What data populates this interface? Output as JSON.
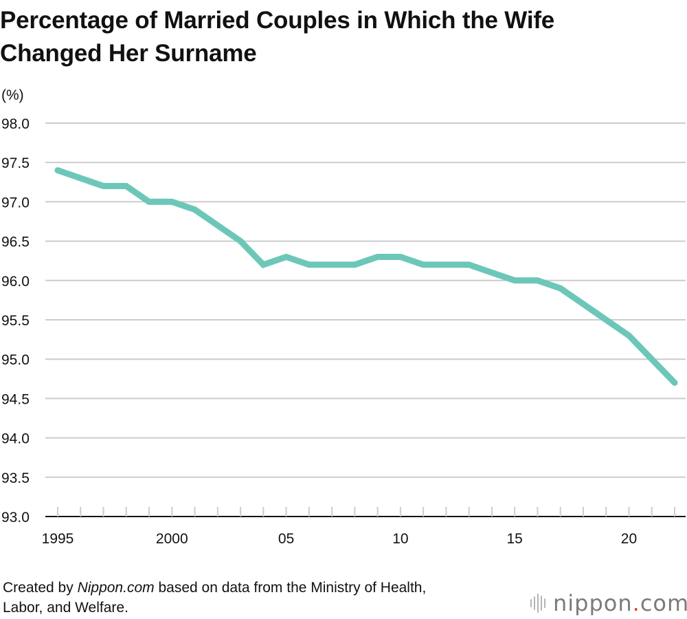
{
  "title_line1": "Percentage of Married Couples in Which the Wife",
  "title_line2": "Changed Her Surname",
  "footer": {
    "prefix": "Created by ",
    "source_name": "Nippon.com",
    "suffix": " based on data from the Ministry of Health,",
    "line2": "Labor, and Welfare."
  },
  "logo": {
    "name": "nippon",
    "dot": ".",
    "tld": "com"
  },
  "colors": {
    "line": "#6cc7b9",
    "grid": "#cccccc",
    "axis": "#111111"
  },
  "chart_data": {
    "type": "line",
    "title": "Percentage of Married Couples in Which the Wife Changed Her Surname",
    "ylabel": "(%)",
    "xlabel": "",
    "ylim": [
      93.0,
      98.0
    ],
    "yticks": [
      "93.0",
      "93.5",
      "94.0",
      "94.5",
      "95.0",
      "95.5",
      "96.0",
      "96.5",
      "97.0",
      "97.5",
      "98.0"
    ],
    "xlim": [
      1995,
      2022
    ],
    "xtick_labels": [
      {
        "x": 1995,
        "label": "1995"
      },
      {
        "x": 2000,
        "label": "2000"
      },
      {
        "x": 2005,
        "label": "05"
      },
      {
        "x": 2010,
        "label": "10"
      },
      {
        "x": 2015,
        "label": "15"
      },
      {
        "x": 2020,
        "label": "20"
      }
    ],
    "grid": true,
    "series": [
      {
        "x": [
          1995,
          1996,
          1997,
          1998,
          1999,
          2000,
          2001,
          2002,
          2003,
          2004,
          2005,
          2006,
          2007,
          2008,
          2009,
          2010,
          2011,
          2012,
          2013,
          2014,
          2015,
          2016,
          2017,
          2018,
          2019,
          2020,
          2021,
          2022
        ],
        "values": [
          97.4,
          97.3,
          97.2,
          97.2,
          97.0,
          97.0,
          96.9,
          96.7,
          96.5,
          96.2,
          96.3,
          96.2,
          96.2,
          96.2,
          96.3,
          96.3,
          96.2,
          96.2,
          96.2,
          96.1,
          96.0,
          96.0,
          95.9,
          95.7,
          95.5,
          95.3,
          95.0,
          94.7
        ]
      }
    ]
  }
}
